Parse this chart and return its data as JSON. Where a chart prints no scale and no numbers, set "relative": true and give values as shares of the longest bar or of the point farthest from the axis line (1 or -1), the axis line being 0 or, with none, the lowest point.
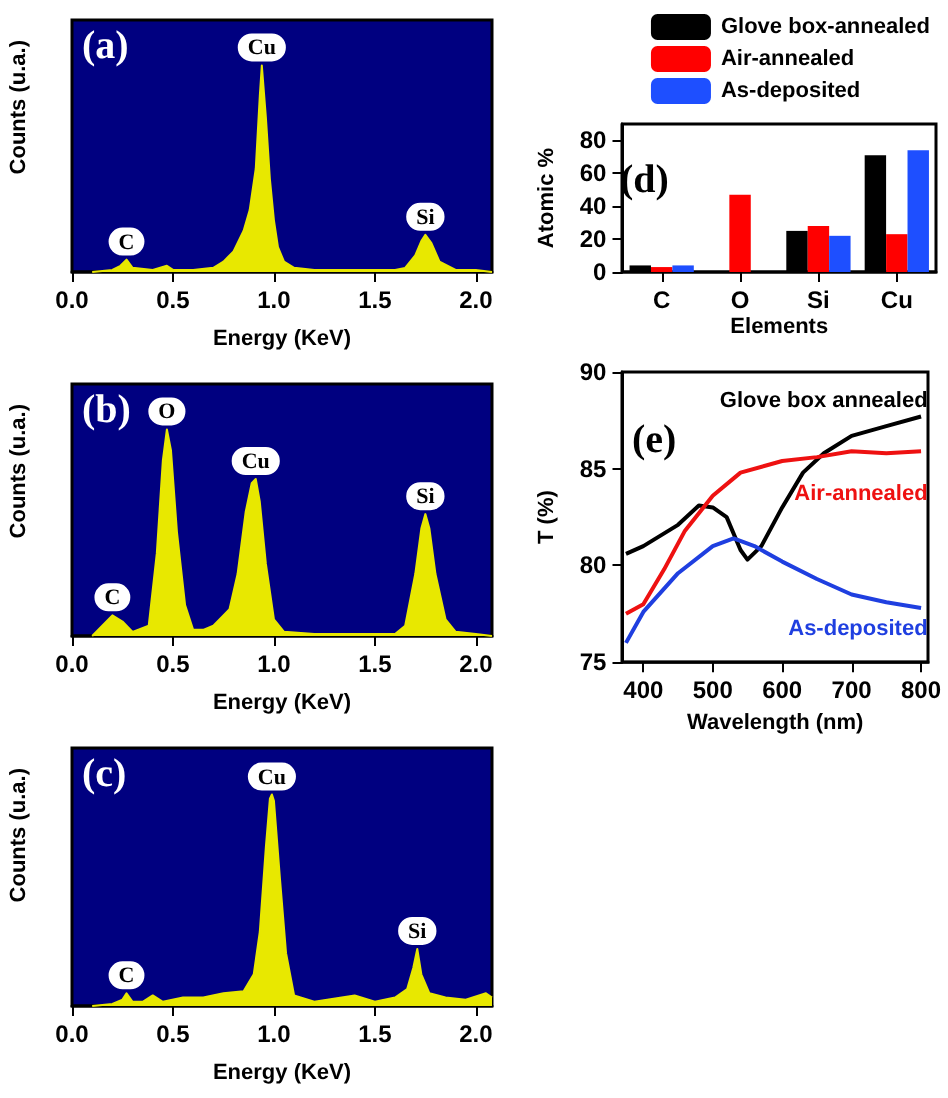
{
  "chart_data": [
    {
      "type": "area",
      "relative": true,
      "xlabel": "Energy (KeV)",
      "ylabel": "Counts (u.a.)",
      "xlim": [
        0,
        2.08
      ],
      "xticks": [
        {
          "value": 0,
          "label": "0.0"
        },
        {
          "value": 0.5,
          "label": "0.5"
        },
        {
          "value": 1,
          "label": "1.0"
        },
        {
          "value": 1.5,
          "label": "1.5"
        },
        {
          "value": 2,
          "label": "2.0"
        }
      ],
      "legend": false,
      "grid": false,
      "annotations": [
        "(a)",
        {
          "text": "C",
          "x": 0.27,
          "y": 0.06
        },
        {
          "text": "Cu",
          "x": 0.94,
          "y": 1
        },
        {
          "text": "Si",
          "x": 1.75,
          "y": 0.18
        }
      ],
      "series": [
        {
          "color": "#e8e800",
          "x": [
            0.1,
            0.2,
            0.24,
            0.27,
            0.3,
            0.4,
            0.47,
            0.5,
            0.6,
            0.7,
            0.75,
            0.8,
            0.85,
            0.88,
            0.91,
            0.93,
            0.94,
            0.96,
            0.98,
            1.0,
            1.02,
            1.05,
            1.1,
            1.2,
            1.3,
            1.4,
            1.5,
            1.6,
            1.65,
            1.7,
            1.73,
            1.75,
            1.78,
            1.82,
            1.9,
            2.0,
            2.08
          ],
          "values": [
            0,
            0.01,
            0.03,
            0.06,
            0.02,
            0.01,
            0.03,
            0.01,
            0.01,
            0.02,
            0.05,
            0.1,
            0.2,
            0.3,
            0.5,
            0.85,
            1,
            0.75,
            0.45,
            0.25,
            0.12,
            0.05,
            0.02,
            0.01,
            0.01,
            0.01,
            0.01,
            0.01,
            0.02,
            0.08,
            0.15,
            0.18,
            0.14,
            0.05,
            0.01,
            0.01,
            0
          ]
        }
      ]
    },
    {
      "type": "area",
      "relative": true,
      "xlabel": "Energy (KeV)",
      "ylabel": "Counts (u.a.)",
      "xlim": [
        0,
        2.08
      ],
      "xticks": [
        {
          "value": 0,
          "label": "0.0"
        },
        {
          "value": 0.5,
          "label": "0.5"
        },
        {
          "value": 1,
          "label": "1.0"
        },
        {
          "value": 1.5,
          "label": "1.5"
        },
        {
          "value": 2,
          "label": "2.0"
        }
      ],
      "legend": false,
      "grid": false,
      "annotations": [
        "(b)",
        {
          "text": "C",
          "x": 0.2,
          "y": 0.1
        },
        {
          "text": "O",
          "x": 0.47,
          "y": 1
        },
        {
          "text": "Cu",
          "x": 0.91,
          "y": 0.76
        },
        {
          "text": "Si",
          "x": 1.75,
          "y": 0.59
        }
      ],
      "series": [
        {
          "color": "#e8e800",
          "x": [
            0.1,
            0.15,
            0.2,
            0.25,
            0.3,
            0.38,
            0.42,
            0.45,
            0.47,
            0.49,
            0.52,
            0.56,
            0.6,
            0.65,
            0.7,
            0.75,
            0.78,
            0.82,
            0.86,
            0.89,
            0.91,
            0.93,
            0.96,
            1.0,
            1.05,
            1.2,
            1.4,
            1.6,
            1.65,
            1.7,
            1.73,
            1.75,
            1.77,
            1.8,
            1.85,
            1.9,
            2.0,
            2.08
          ],
          "values": [
            0,
            0.05,
            0.1,
            0.07,
            0.02,
            0.05,
            0.4,
            0.85,
            1,
            0.9,
            0.5,
            0.15,
            0.03,
            0.03,
            0.05,
            0.1,
            0.13,
            0.3,
            0.6,
            0.74,
            0.76,
            0.65,
            0.35,
            0.08,
            0.02,
            0.01,
            0.01,
            0.01,
            0.05,
            0.3,
            0.52,
            0.59,
            0.52,
            0.3,
            0.08,
            0.02,
            0.01,
            0
          ]
        }
      ]
    },
    {
      "type": "area",
      "relative": true,
      "xlabel": "Energy (KeV)",
      "ylabel": "Counts (u.a.)",
      "xlim": [
        0,
        2.08
      ],
      "xticks": [
        {
          "value": 0,
          "label": "0.0"
        },
        {
          "value": 0.5,
          "label": "0.5"
        },
        {
          "value": 1,
          "label": "1.0"
        },
        {
          "value": 1.5,
          "label": "1.5"
        },
        {
          "value": 2,
          "label": "2.0"
        }
      ],
      "legend": false,
      "grid": false,
      "annotations": [
        "(c)",
        {
          "text": "C",
          "x": 0.27,
          "y": 0.06
        },
        {
          "text": "Cu",
          "x": 0.99,
          "y": 1
        },
        {
          "text": "Si",
          "x": 1.71,
          "y": 0.27
        }
      ],
      "series": [
        {
          "color": "#e8e800",
          "x": [
            0.1,
            0.2,
            0.25,
            0.27,
            0.3,
            0.35,
            0.4,
            0.45,
            0.55,
            0.65,
            0.75,
            0.85,
            0.9,
            0.93,
            0.96,
            0.98,
            0.99,
            1.0,
            1.03,
            1.06,
            1.1,
            1.2,
            1.4,
            1.5,
            1.6,
            1.66,
            1.69,
            1.71,
            1.73,
            1.77,
            1.85,
            1.95,
            2.05,
            2.08
          ],
          "values": [
            0,
            0.01,
            0.03,
            0.06,
            0.02,
            0.02,
            0.05,
            0.02,
            0.04,
            0.04,
            0.06,
            0.07,
            0.15,
            0.35,
            0.75,
            0.98,
            1,
            0.97,
            0.6,
            0.25,
            0.05,
            0.02,
            0.05,
            0.02,
            0.04,
            0.08,
            0.18,
            0.27,
            0.15,
            0.06,
            0.04,
            0.03,
            0.06,
            0.04
          ]
        }
      ]
    },
    {
      "type": "bar",
      "xlabel": "Elements",
      "ylabel": "Atomic %",
      "categories": [
        "C",
        "O",
        "Si",
        "Cu"
      ],
      "ylim": [
        0,
        90
      ],
      "yticks": [
        0,
        20,
        40,
        60,
        80
      ],
      "legend": "top",
      "grid": false,
      "annotations": [
        "(d)"
      ],
      "series": [
        {
          "name": "Glove box-annealed",
          "color": "#000000",
          "values": [
            4,
            0,
            25,
            71
          ]
        },
        {
          "name": "Air-annealed",
          "color": "#ff0000",
          "values": [
            3,
            47,
            28,
            23
          ]
        },
        {
          "name": "As-deposited",
          "color": "#1e4fff",
          "values": [
            4,
            0,
            22,
            74
          ]
        }
      ]
    },
    {
      "type": "line",
      "xlabel": "Wavelength (nm)",
      "ylabel": "T (%)",
      "xlim": [
        370,
        810
      ],
      "xticks": [
        400,
        500,
        600,
        700,
        800
      ],
      "ylim": [
        75,
        90
      ],
      "yticks": [
        75,
        80,
        85,
        90
      ],
      "legend": false,
      "grid": false,
      "marker": "none",
      "annotations": [
        "(e)"
      ],
      "series": [
        {
          "name": "Glove box annealed",
          "color": "#000000",
          "x": [
            375,
            400,
            450,
            480,
            500,
            520,
            540,
            550,
            570,
            600,
            630,
            660,
            700,
            750,
            800
          ],
          "values": [
            80.6,
            81.0,
            82.1,
            83.1,
            83.0,
            82.5,
            80.8,
            80.3,
            81.0,
            83.0,
            84.8,
            85.8,
            86.7,
            87.2,
            87.7
          ]
        },
        {
          "name": "Air-annealed",
          "color": "#ee1111",
          "x": [
            375,
            400,
            430,
            460,
            500,
            540,
            600,
            650,
            700,
            750,
            800
          ],
          "values": [
            77.5,
            78.0,
            79.8,
            81.8,
            83.6,
            84.8,
            85.4,
            85.6,
            85.9,
            85.8,
            85.9
          ]
        },
        {
          "name": "As-deposited",
          "color": "#1f3fe0",
          "x": [
            375,
            400,
            450,
            500,
            530,
            560,
            600,
            650,
            700,
            750,
            800
          ],
          "values": [
            76.0,
            77.6,
            79.6,
            81.0,
            81.4,
            81.0,
            80.2,
            79.3,
            78.5,
            78.1,
            77.8
          ]
        }
      ]
    }
  ]
}
